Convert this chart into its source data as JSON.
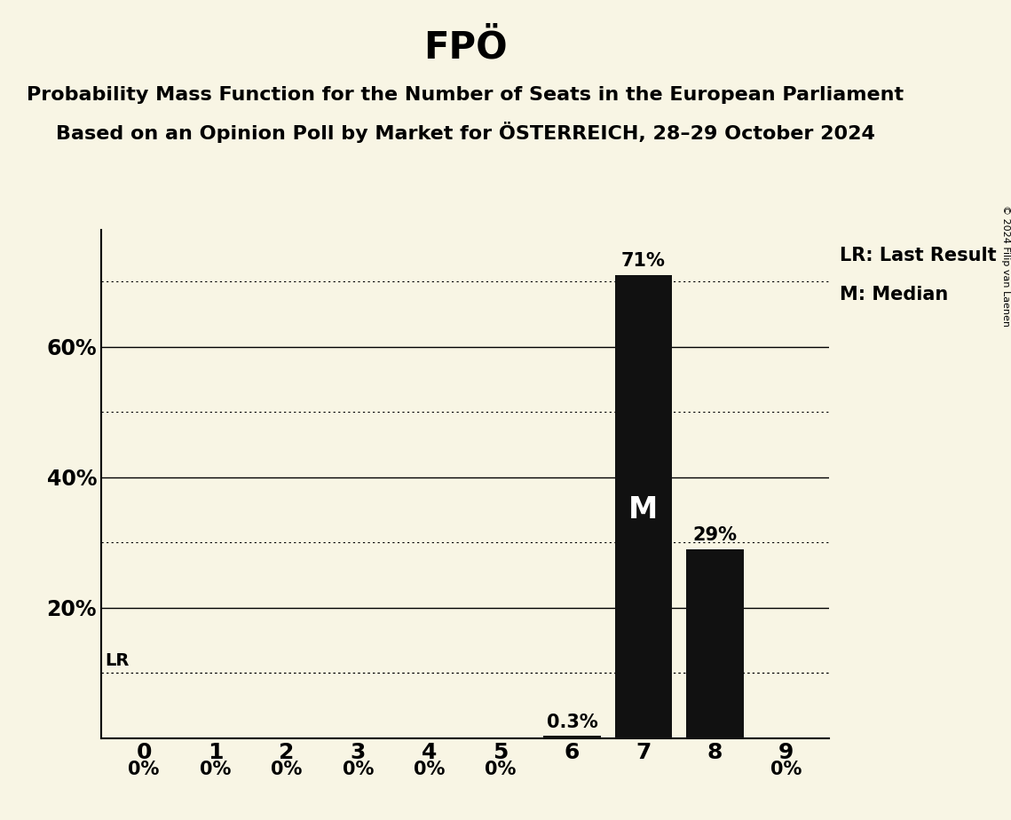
{
  "title": "FPÖ",
  "subtitle1": "Probability Mass Function for the Number of Seats in the European Parliament",
  "subtitle2": "Based on an Opinion Poll by Market for ÖSTERREICH, 28–29 October 2024",
  "copyright": "© 2024 Filip van Laenen",
  "categories": [
    0,
    1,
    2,
    3,
    4,
    5,
    6,
    7,
    8,
    9
  ],
  "values": [
    0.0,
    0.0,
    0.0,
    0.0,
    0.0,
    0.0,
    0.3,
    71.0,
    29.0,
    0.0
  ],
  "labels": [
    "0%",
    "0%",
    "0%",
    "0%",
    "0%",
    "0%",
    "0.3%",
    "71%",
    "29%",
    "0%"
  ],
  "bar_color": "#111111",
  "background_color": "#f8f5e4",
  "median_seat": 7,
  "last_result_value": 10.0,
  "ylim_max": 78,
  "solid_gridlines": [
    20,
    40,
    60
  ],
  "dotted_gridlines": [
    10,
    30,
    50,
    70
  ],
  "title_fontsize": 30,
  "subtitle_fontsize": 16,
  "label_fontsize": 15,
  "tick_fontsize": 18,
  "ytick_fontsize": 17,
  "legend_fontsize": 15,
  "copyright_fontsize": 8
}
